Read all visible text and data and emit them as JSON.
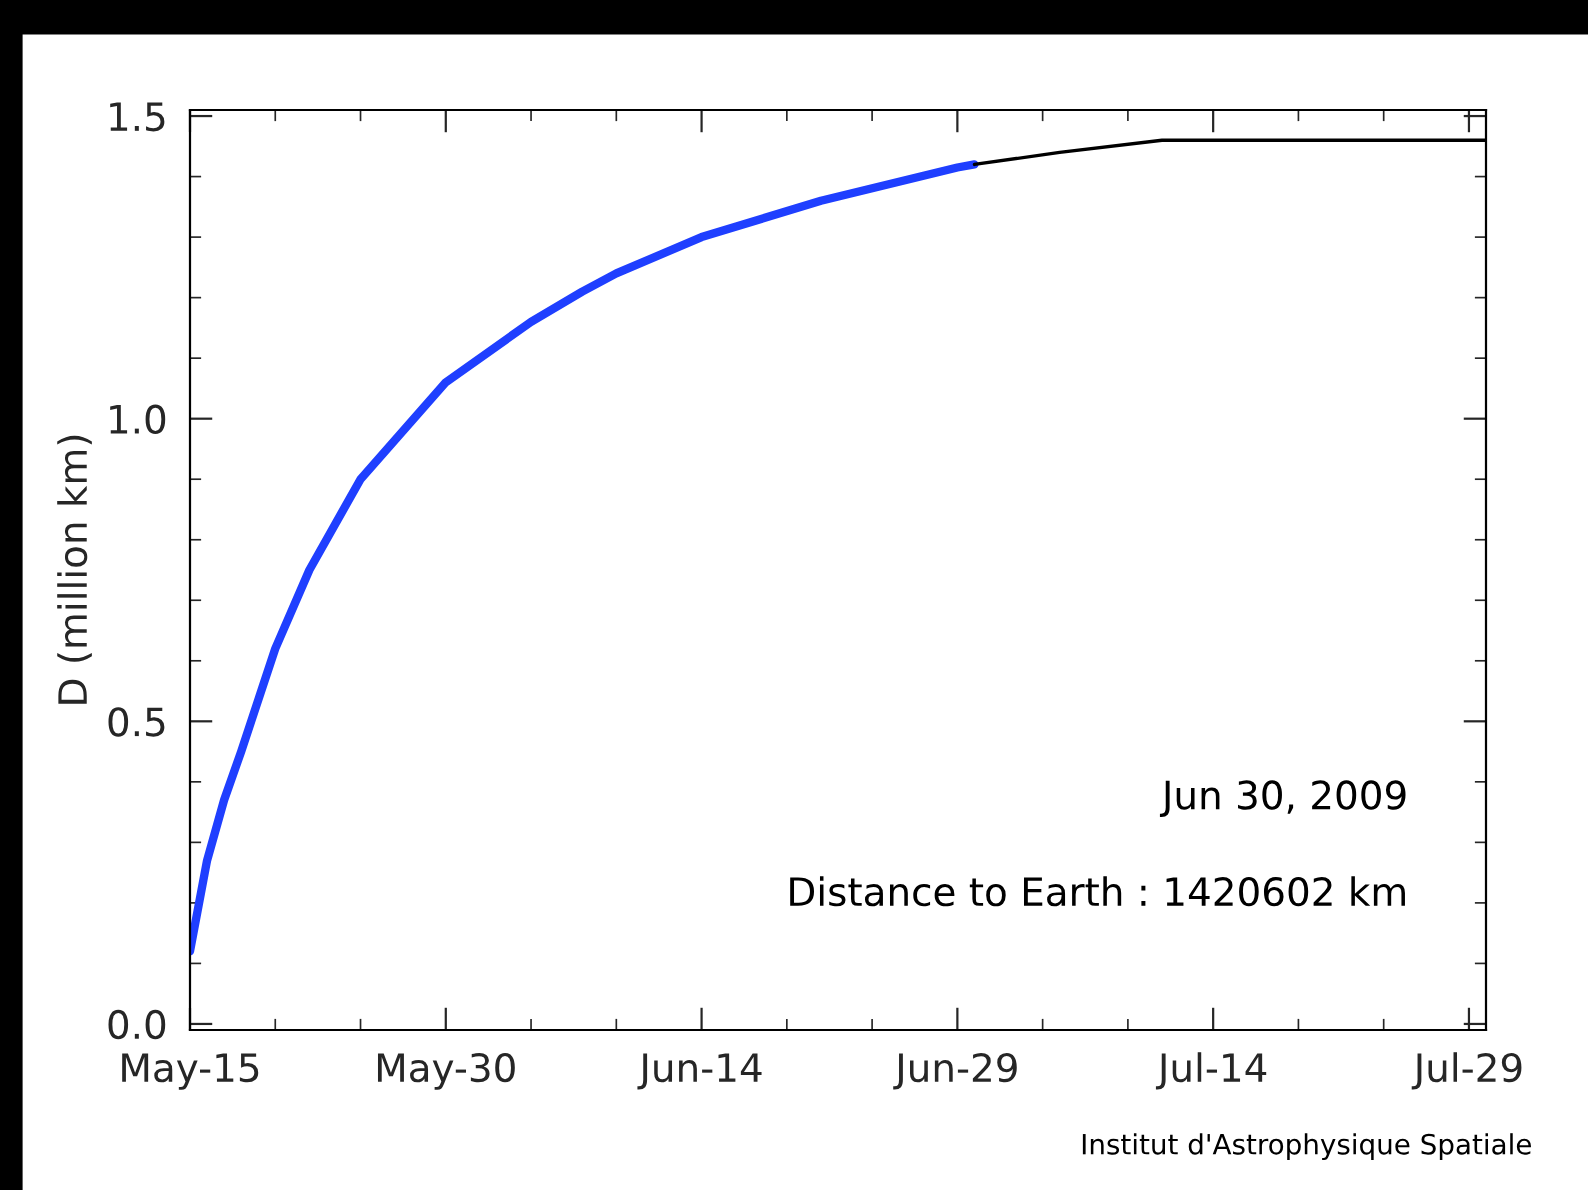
{
  "chart_data": {
    "type": "line",
    "ylabel": "D (million km)",
    "xlim": [
      "2009-05-15",
      "2009-07-30"
    ],
    "ylim": [
      -0.01,
      1.51
    ],
    "xticks": [
      {
        "value": "2009-05-15",
        "label": "May-15"
      },
      {
        "value": "2009-05-30",
        "label": "May-30"
      },
      {
        "value": "2009-06-14",
        "label": "Jun-14"
      },
      {
        "value": "2009-06-29",
        "label": "Jun-29"
      },
      {
        "value": "2009-07-14",
        "label": "Jul-14"
      },
      {
        "value": "2009-07-29",
        "label": "Jul-29"
      }
    ],
    "yticks": [
      {
        "value": 0,
        "label": "0.0"
      },
      {
        "value": 0.5,
        "label": "0.5"
      },
      {
        "value": 1,
        "label": "1.0"
      },
      {
        "value": 1.5,
        "label": "1.5"
      }
    ],
    "grid": false,
    "legend": false,
    "marker": "none",
    "line_style": "solid",
    "series": [
      {
        "color": "#1f3fff",
        "x": [
          "2009-05-15",
          "2009-05-16",
          "2009-05-17",
          "2009-05-18",
          "2009-05-20",
          "2009-05-22",
          "2009-05-25",
          "2009-05-30",
          "2009-06-04",
          "2009-06-07",
          "2009-06-09",
          "2009-06-14",
          "2009-06-21",
          "2009-06-29",
          "2009-06-30"
        ],
        "values": [
          0.12,
          0.27,
          0.37,
          0.45,
          0.62,
          0.75,
          0.9,
          1.06,
          1.16,
          1.21,
          1.24,
          1.3,
          1.36,
          1.415,
          1.42
        ]
      },
      {
        "color": "#000000",
        "x": [
          "2009-06-30",
          "2009-07-05",
          "2009-07-11",
          "2009-07-18",
          "2009-07-30"
        ],
        "values": [
          1.42,
          1.44,
          1.46,
          1.46,
          1.46
        ]
      }
    ],
    "annotations": [
      "Jun 30, 2009",
      "Distance to Earth : 1420602 km",
      "Institut d'Astrophysique Spatiale"
    ]
  }
}
